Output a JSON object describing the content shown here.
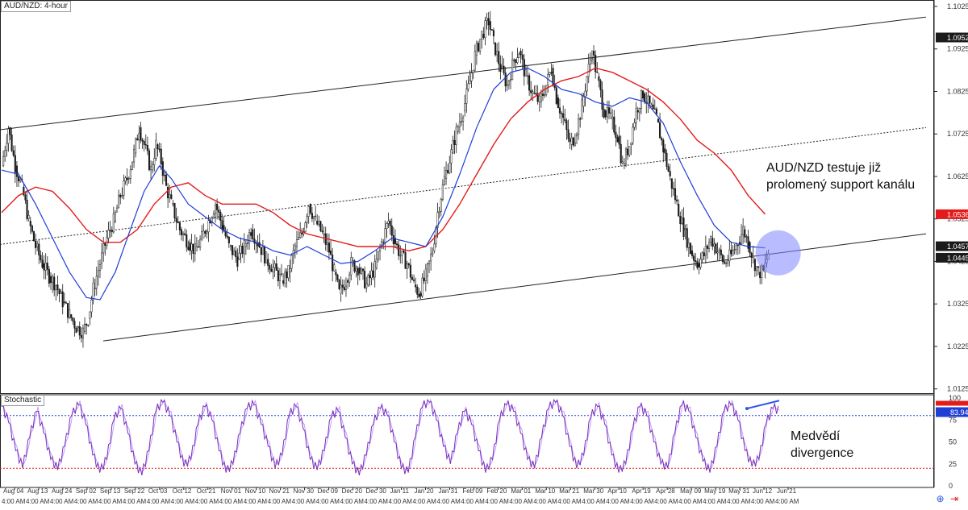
{
  "window_title": "AUD/NZD: 4-hour",
  "stoch_title": "Stochastic",
  "annotations": {
    "main": [
      "AUD/NZD testuje již",
      "prolomený support kanálu"
    ],
    "stoch": [
      "Medvědí",
      "divergence"
    ]
  },
  "colors": {
    "candle": "#1b1b1b",
    "ma_fast": "#1f3ed6",
    "ma_slow": "#e31b1b",
    "channel": "#222222",
    "stoch_line": "#7b2fb8",
    "stoch_signal": "#c0a0ff",
    "circle": "#7f86ff",
    "divergence": "#2a56e8",
    "level_red": "#e31b1b",
    "level_blue": "#1f3ed6",
    "price_box_dark": "#1b1b1b",
    "price_box_red": "#e31b1b",
    "price_box_blue": "#1f3ed6"
  },
  "chart_data": [
    {
      "type": "candlestick",
      "title": "AUD/NZD: 4-hour",
      "ylim": [
        1.0115,
        1.1025
      ],
      "y_ticks": [
        "1.1025",
        "1.0925",
        "1.0825",
        "1.0725",
        "1.0625",
        "1.0525",
        "1.0425",
        "1.0325",
        "1.0225",
        "1.0125"
      ],
      "price_labels": [
        {
          "value": "1.0952",
          "style": "dark"
        },
        {
          "value": "1.0536",
          "style": "red"
        },
        {
          "value": "1.0457",
          "style": "dark"
        },
        {
          "value": "1.0445",
          "style": "dark"
        }
      ],
      "x_labels": [
        "Aug 04",
        "Aug 13",
        "Aug 24",
        "Sep 02",
        "Sep 13",
        "Sep 22",
        "Oct 03",
        "Oct 12",
        "Oct 21",
        "Nov 01",
        "Nov 10",
        "Nov 21",
        "Nov 30",
        "Dec 09",
        "Dec 20",
        "Dec 30",
        "Jan 11",
        "Jan 20",
        "Jan 31",
        "Feb 09",
        "Feb 20",
        "Mar 01",
        "Mar 10",
        "Mar 21",
        "Mar 30",
        "Apr 10",
        "Apr 19",
        "Apr 28",
        "May 09",
        "May 19",
        "May 31",
        "Jun 12",
        "Jun 21"
      ],
      "time_labels": [
        "4:00 AM"
      ],
      "close_path": [
        [
          0,
          1.065
        ],
        [
          8,
          1.074
        ],
        [
          16,
          1.065
        ],
        [
          24,
          1.06
        ],
        [
          32,
          1.052
        ],
        [
          40,
          1.046
        ],
        [
          48,
          1.042
        ],
        [
          56,
          1.039
        ],
        [
          64,
          1.037
        ],
        [
          72,
          1.033
        ],
        [
          80,
          1.03
        ],
        [
          88,
          1.027
        ],
        [
          96,
          1.026
        ],
        [
          102,
          1.029
        ],
        [
          108,
          1.036
        ],
        [
          116,
          1.042
        ],
        [
          124,
          1.048
        ],
        [
          132,
          1.052
        ],
        [
          140,
          1.058
        ],
        [
          148,
          1.062
        ],
        [
          156,
          1.068
        ],
        [
          162,
          1.074
        ],
        [
          168,
          1.07
        ],
        [
          176,
          1.064
        ],
        [
          182,
          1.07
        ],
        [
          188,
          1.066
        ],
        [
          194,
          1.06
        ],
        [
          200,
          1.056
        ],
        [
          210,
          1.05
        ],
        [
          220,
          1.047
        ],
        [
          228,
          1.045
        ],
        [
          236,
          1.048
        ],
        [
          244,
          1.052
        ],
        [
          252,
          1.056
        ],
        [
          260,
          1.051
        ],
        [
          268,
          1.046
        ],
        [
          278,
          1.043
        ],
        [
          286,
          1.046
        ],
        [
          294,
          1.05
        ],
        [
          302,
          1.047
        ],
        [
          312,
          1.043
        ],
        [
          320,
          1.041
        ],
        [
          330,
          1.038
        ],
        [
          338,
          1.04
        ],
        [
          346,
          1.046
        ],
        [
          354,
          1.049
        ],
        [
          362,
          1.056
        ],
        [
          370,
          1.052
        ],
        [
          378,
          1.049
        ],
        [
          386,
          1.045
        ],
        [
          392,
          1.04
        ],
        [
          398,
          1.035
        ],
        [
          406,
          1.038
        ],
        [
          412,
          1.042
        ],
        [
          420,
          1.041
        ],
        [
          430,
          1.037
        ],
        [
          440,
          1.041
        ],
        [
          448,
          1.047
        ],
        [
          456,
          1.052
        ],
        [
          462,
          1.048
        ],
        [
          470,
          1.044
        ],
        [
          478,
          1.042
        ],
        [
          486,
          1.037
        ],
        [
          492,
          1.035
        ],
        [
          500,
          1.039
        ],
        [
          508,
          1.045
        ],
        [
          514,
          1.054
        ],
        [
          522,
          1.062
        ],
        [
          530,
          1.068
        ],
        [
          536,
          1.073
        ],
        [
          544,
          1.078
        ],
        [
          552,
          1.085
        ],
        [
          558,
          1.091
        ],
        [
          566,
          1.096
        ],
        [
          574,
          1.099
        ],
        [
          580,
          1.094
        ],
        [
          588,
          1.088
        ],
        [
          596,
          1.084
        ],
        [
          604,
          1.09
        ],
        [
          610,
          1.092
        ],
        [
          618,
          1.086
        ],
        [
          626,
          1.082
        ],
        [
          634,
          1.08
        ],
        [
          642,
          1.084
        ],
        [
          648,
          1.088
        ],
        [
          654,
          1.081
        ],
        [
          662,
          1.076
        ],
        [
          670,
          1.07
        ],
        [
          676,
          1.072
        ],
        [
          684,
          1.079
        ],
        [
          690,
          1.086
        ],
        [
          696,
          1.092
        ],
        [
          702,
          1.086
        ],
        [
          710,
          1.078
        ],
        [
          718,
          1.076
        ],
        [
          726,
          1.072
        ],
        [
          732,
          1.065
        ],
        [
          740,
          1.07
        ],
        [
          748,
          1.078
        ],
        [
          756,
          1.082
        ],
        [
          764,
          1.079
        ],
        [
          772,
          1.076
        ],
        [
          780,
          1.069
        ],
        [
          788,
          1.062
        ],
        [
          796,
          1.056
        ],
        [
          804,
          1.05
        ],
        [
          812,
          1.045
        ],
        [
          820,
          1.042
        ],
        [
          828,
          1.044
        ],
        [
          836,
          1.048
        ],
        [
          844,
          1.045
        ],
        [
          852,
          1.042
        ],
        [
          860,
          1.044
        ],
        [
          868,
          1.047
        ],
        [
          874,
          1.05
        ],
        [
          880,
          1.047
        ],
        [
          886,
          1.043
        ],
        [
          892,
          1.04
        ],
        [
          898,
          1.04
        ],
        [
          904,
          1.0445
        ]
      ],
      "ma_fast": [
        [
          0,
          1.064
        ],
        [
          20,
          1.063
        ],
        [
          40,
          1.056
        ],
        [
          60,
          1.048
        ],
        [
          80,
          1.04
        ],
        [
          100,
          1.034
        ],
        [
          116,
          1.0335
        ],
        [
          134,
          1.04
        ],
        [
          150,
          1.049
        ],
        [
          168,
          1.059
        ],
        [
          186,
          1.065
        ],
        [
          200,
          1.062
        ],
        [
          220,
          1.056
        ],
        [
          240,
          1.053
        ],
        [
          260,
          1.05
        ],
        [
          280,
          1.048
        ],
        [
          300,
          1.047
        ],
        [
          320,
          1.045
        ],
        [
          340,
          1.044
        ],
        [
          360,
          1.046
        ],
        [
          380,
          1.044
        ],
        [
          400,
          1.042
        ],
        [
          420,
          1.0425
        ],
        [
          440,
          1.045
        ],
        [
          460,
          1.048
        ],
        [
          480,
          1.047
        ],
        [
          500,
          1.046
        ],
        [
          520,
          1.053
        ],
        [
          540,
          1.063
        ],
        [
          560,
          1.074
        ],
        [
          580,
          1.083
        ],
        [
          600,
          1.087
        ],
        [
          620,
          1.088
        ],
        [
          640,
          1.086
        ],
        [
          660,
          1.083
        ],
        [
          680,
          1.082
        ],
        [
          700,
          1.08
        ],
        [
          720,
          1.079
        ],
        [
          740,
          1.081
        ],
        [
          760,
          1.08
        ],
        [
          780,
          1.075
        ],
        [
          800,
          1.066
        ],
        [
          820,
          1.058
        ],
        [
          840,
          1.051
        ],
        [
          860,
          1.047
        ],
        [
          880,
          1.046
        ],
        [
          900,
          1.0457
        ]
      ],
      "ma_slow": [
        [
          0,
          1.054
        ],
        [
          20,
          1.058
        ],
        [
          40,
          1.06
        ],
        [
          60,
          1.059
        ],
        [
          80,
          1.055
        ],
        [
          100,
          1.05
        ],
        [
          120,
          1.047
        ],
        [
          140,
          1.047
        ],
        [
          160,
          1.05
        ],
        [
          180,
          1.056
        ],
        [
          200,
          1.06
        ],
        [
          220,
          1.061
        ],
        [
          240,
          1.058
        ],
        [
          260,
          1.056
        ],
        [
          280,
          1.056
        ],
        [
          300,
          1.056
        ],
        [
          320,
          1.054
        ],
        [
          340,
          1.051
        ],
        [
          360,
          1.049
        ],
        [
          380,
          1.048
        ],
        [
          400,
          1.047
        ],
        [
          420,
          1.046
        ],
        [
          440,
          1.046
        ],
        [
          460,
          1.046
        ],
        [
          480,
          1.045
        ],
        [
          500,
          1.046
        ],
        [
          520,
          1.05
        ],
        [
          540,
          1.056
        ],
        [
          560,
          1.063
        ],
        [
          580,
          1.07
        ],
        [
          600,
          1.076
        ],
        [
          620,
          1.08
        ],
        [
          640,
          1.083
        ],
        [
          660,
          1.085
        ],
        [
          680,
          1.086
        ],
        [
          700,
          1.088
        ],
        [
          720,
          1.087
        ],
        [
          740,
          1.085
        ],
        [
          760,
          1.083
        ],
        [
          780,
          1.08
        ],
        [
          800,
          1.076
        ],
        [
          820,
          1.071
        ],
        [
          840,
          1.068
        ],
        [
          860,
          1.064
        ],
        [
          880,
          1.058
        ],
        [
          900,
          1.0536
        ]
      ]
    },
    {
      "type": "line",
      "title": "Stochastic",
      "ylim": [
        0,
        100
      ],
      "y_ticks": [
        "100",
        "75",
        "50",
        "25",
        "0"
      ],
      "levels": [
        80,
        20
      ],
      "current_value": "83.94",
      "series": [
        {
          "name": "",
          "values": [
            90,
            72,
            40,
            20,
            55,
            85,
            60,
            30,
            18,
            45,
            80,
            92,
            70,
            35,
            15,
            30,
            75,
            88,
            60,
            25,
            12,
            40,
            85,
            95,
            80,
            50,
            22,
            30,
            70,
            90,
            75,
            40,
            15,
            25,
            60,
            88,
            92,
            70,
            45,
            20,
            35,
            80,
            90,
            65,
            30,
            18,
            40,
            78,
            85,
            55,
            25,
            12,
            35,
            70,
            88,
            80,
            50,
            20,
            15,
            55,
            90,
            95,
            75,
            45,
            25,
            60,
            85,
            70,
            40,
            15,
            30,
            75,
            92,
            85,
            60,
            30,
            20,
            55,
            88,
            95,
            80,
            45,
            20,
            35,
            78,
            90,
            70,
            35,
            15,
            25,
            65,
            90,
            80,
            50,
            25,
            20,
            60,
            92,
            85,
            55,
            28,
            15,
            45,
            85,
            92,
            75,
            40,
            22,
            30,
            70,
            88,
            83.94
          ]
        }
      ]
    }
  ]
}
